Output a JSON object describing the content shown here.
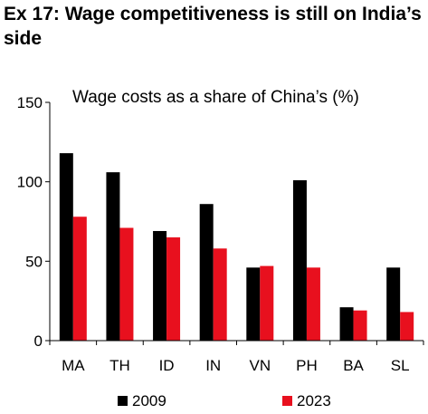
{
  "exhibit": {
    "title": "Ex 17: Wage competitiveness is still on India’s side"
  },
  "colors": {
    "series_2009": "#000000",
    "series_2023": "#e8101e",
    "axis": "#000000"
  },
  "chart_data": {
    "type": "bar",
    "title": "Wage costs as a share of China’s (%)",
    "xlabel": "",
    "ylabel": "",
    "categories": [
      "MA",
      "TH",
      "ID",
      "IN",
      "VN",
      "PH",
      "BA",
      "SL"
    ],
    "series": [
      {
        "name": "2009",
        "values": [
          118,
          106,
          69,
          86,
          46,
          101,
          21,
          46
        ]
      },
      {
        "name": "2023",
        "values": [
          78,
          71,
          65,
          58,
          47,
          46,
          19,
          18
        ]
      }
    ],
    "ylim": [
      0,
      150
    ],
    "yticks": [
      "0",
      "50",
      "100",
      "150"
    ],
    "grid": false,
    "legend": "bottom"
  }
}
